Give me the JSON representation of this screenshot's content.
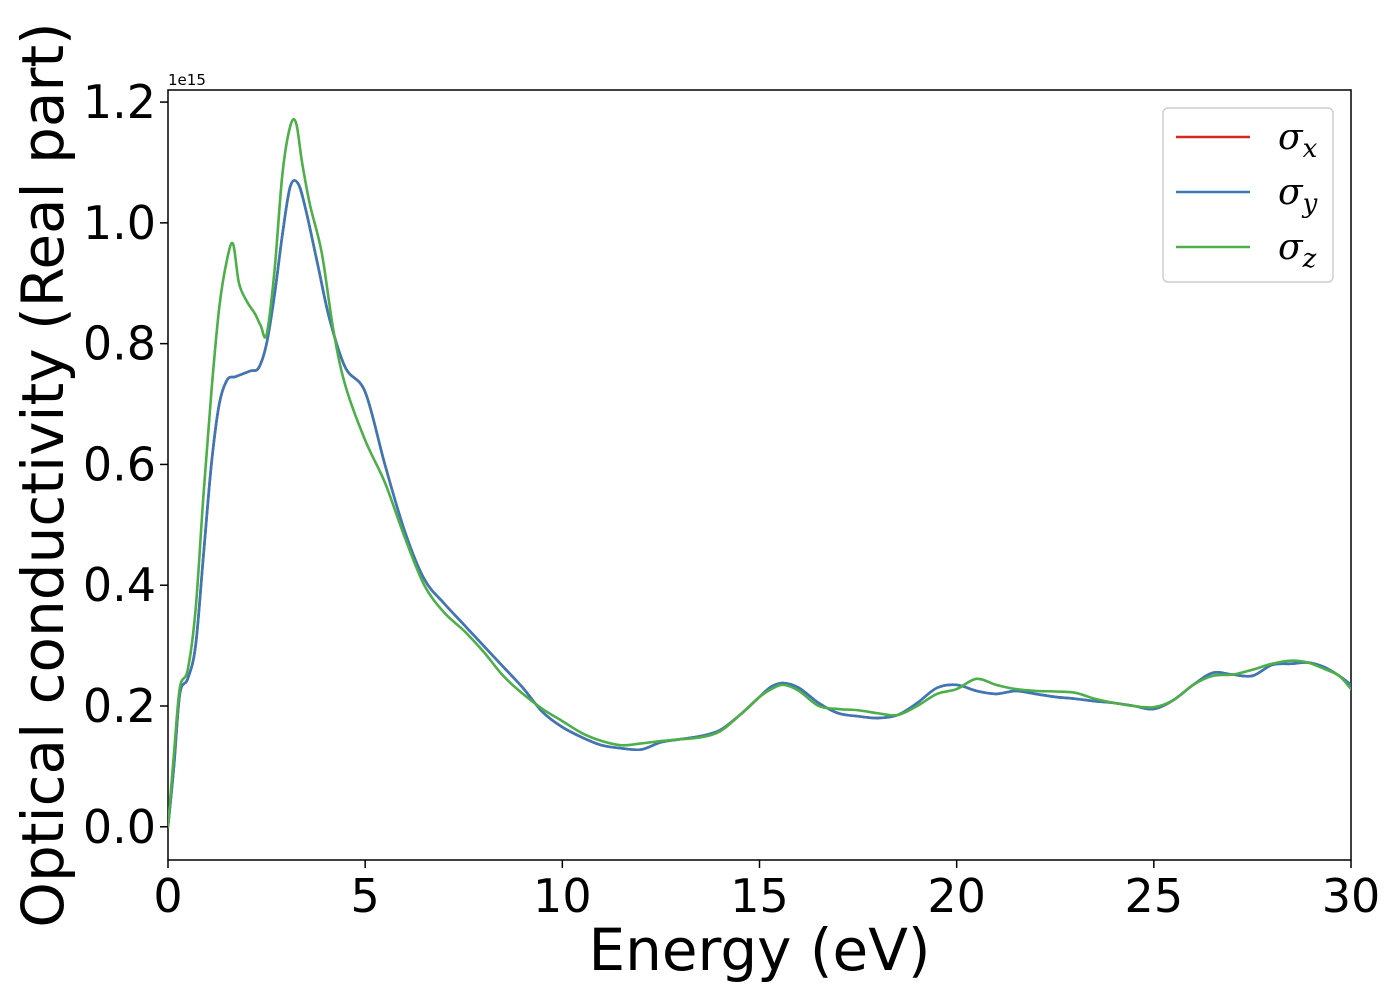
{
  "chart_data": {
    "type": "line",
    "title": "",
    "xlabel": "Energy (eV)",
    "ylabel": "Optical conductivity (Real part)",
    "y_offset_label": "1e15",
    "xlim": [
      0,
      30
    ],
    "ylim": [
      -0.055,
      1.22
    ],
    "y_scale": 1000000000000000.0,
    "xticks": [
      0,
      5,
      10,
      15,
      20,
      25,
      30
    ],
    "xtick_labels": [
      "0",
      "5",
      "10",
      "15",
      "20",
      "25",
      "30"
    ],
    "yticks": [
      0.0,
      0.2,
      0.4,
      0.6,
      0.8,
      1.0,
      1.2
    ],
    "ytick_labels": [
      "0.0",
      "0.2",
      "0.4",
      "0.6",
      "0.8",
      "1.0",
      "1.2"
    ],
    "grid": false,
    "legend_position": "top-right",
    "series": [
      {
        "name": "σx",
        "legend_base": "σ",
        "legend_sub": "x",
        "color": "#d62728",
        "x": [
          0,
          0.15,
          0.3,
          0.5,
          0.7,
          0.9,
          1.1,
          1.3,
          1.5,
          1.7,
          1.9,
          2.1,
          2.3,
          2.5,
          2.7,
          2.9,
          3.1,
          3.3,
          3.5,
          3.8,
          4.1,
          4.5,
          5.0,
          5.5,
          6.0,
          6.5,
          7.0,
          7.5,
          8.0,
          8.5,
          9.0,
          9.5,
          10.0,
          10.5,
          11.0,
          11.5,
          12.0,
          12.5,
          13.0,
          13.5,
          14.0,
          14.5,
          15.0,
          15.3,
          15.6,
          16.0,
          16.5,
          17.0,
          17.5,
          18.0,
          18.5,
          19.0,
          19.5,
          20.0,
          20.5,
          21.0,
          21.5,
          22.0,
          22.5,
          23.0,
          23.5,
          24.0,
          24.5,
          25.0,
          25.5,
          26.0,
          26.5,
          27.0,
          27.5,
          28.0,
          28.5,
          28.9,
          29.3,
          29.7,
          30.0
        ],
        "y": [
          0.0,
          0.1,
          0.22,
          0.245,
          0.3,
          0.45,
          0.6,
          0.7,
          0.74,
          0.745,
          0.75,
          0.755,
          0.76,
          0.8,
          0.88,
          0.98,
          1.06,
          1.065,
          1.02,
          0.93,
          0.84,
          0.76,
          0.72,
          0.6,
          0.49,
          0.41,
          0.37,
          0.335,
          0.3,
          0.265,
          0.23,
          0.19,
          0.165,
          0.148,
          0.135,
          0.13,
          0.128,
          0.14,
          0.145,
          0.15,
          0.16,
          0.185,
          0.215,
          0.232,
          0.238,
          0.23,
          0.205,
          0.188,
          0.183,
          0.18,
          0.185,
          0.205,
          0.23,
          0.235,
          0.225,
          0.22,
          0.225,
          0.22,
          0.215,
          0.212,
          0.208,
          0.205,
          0.2,
          0.195,
          0.21,
          0.235,
          0.255,
          0.252,
          0.25,
          0.268,
          0.27,
          0.272,
          0.265,
          0.25,
          0.235
        ]
      },
      {
        "name": "σy",
        "legend_base": "σ",
        "legend_sub": "y",
        "color": "#3b78b8",
        "x": [
          0,
          0.15,
          0.3,
          0.5,
          0.7,
          0.9,
          1.1,
          1.3,
          1.5,
          1.7,
          1.9,
          2.1,
          2.3,
          2.5,
          2.7,
          2.9,
          3.1,
          3.3,
          3.5,
          3.8,
          4.1,
          4.5,
          5.0,
          5.5,
          6.0,
          6.5,
          7.0,
          7.5,
          8.0,
          8.5,
          9.0,
          9.5,
          10.0,
          10.5,
          11.0,
          11.5,
          12.0,
          12.5,
          13.0,
          13.5,
          14.0,
          14.5,
          15.0,
          15.3,
          15.6,
          16.0,
          16.5,
          17.0,
          17.5,
          18.0,
          18.5,
          19.0,
          19.5,
          20.0,
          20.5,
          21.0,
          21.5,
          22.0,
          22.5,
          23.0,
          23.5,
          24.0,
          24.5,
          25.0,
          25.5,
          26.0,
          26.5,
          27.0,
          27.5,
          28.0,
          28.5,
          28.9,
          29.3,
          29.7,
          30.0
        ],
        "y": [
          0.0,
          0.1,
          0.22,
          0.245,
          0.3,
          0.45,
          0.6,
          0.7,
          0.74,
          0.745,
          0.75,
          0.755,
          0.76,
          0.8,
          0.88,
          0.98,
          1.06,
          1.065,
          1.02,
          0.93,
          0.84,
          0.76,
          0.72,
          0.6,
          0.49,
          0.41,
          0.37,
          0.335,
          0.3,
          0.265,
          0.23,
          0.19,
          0.165,
          0.148,
          0.135,
          0.13,
          0.128,
          0.14,
          0.145,
          0.15,
          0.16,
          0.185,
          0.215,
          0.232,
          0.238,
          0.23,
          0.205,
          0.188,
          0.183,
          0.18,
          0.185,
          0.205,
          0.23,
          0.235,
          0.225,
          0.22,
          0.225,
          0.22,
          0.215,
          0.212,
          0.208,
          0.205,
          0.2,
          0.195,
          0.21,
          0.235,
          0.255,
          0.252,
          0.25,
          0.268,
          0.27,
          0.272,
          0.265,
          0.25,
          0.235
        ]
      },
      {
        "name": "σz",
        "legend_base": "σ",
        "legend_sub": "z",
        "color": "#4daf4a",
        "x": [
          0,
          0.15,
          0.3,
          0.5,
          0.7,
          0.9,
          1.1,
          1.3,
          1.5,
          1.65,
          1.8,
          2.0,
          2.2,
          2.35,
          2.5,
          2.7,
          2.9,
          3.1,
          3.25,
          3.4,
          3.6,
          3.9,
          4.2,
          4.5,
          5.0,
          5.5,
          6.0,
          6.5,
          7.0,
          7.5,
          8.0,
          8.5,
          9.0,
          9.5,
          10.0,
          10.5,
          11.0,
          11.5,
          12.0,
          12.5,
          13.0,
          13.5,
          14.0,
          14.5,
          15.0,
          15.3,
          15.6,
          16.0,
          16.5,
          17.0,
          17.5,
          18.0,
          18.5,
          19.0,
          19.5,
          20.0,
          20.5,
          21.0,
          21.5,
          22.0,
          22.5,
          23.0,
          23.5,
          24.0,
          24.5,
          25.0,
          25.5,
          26.0,
          26.5,
          27.0,
          27.5,
          28.0,
          28.5,
          28.9,
          29.3,
          29.7,
          30.0
        ],
        "y": [
          0.0,
          0.12,
          0.23,
          0.26,
          0.36,
          0.55,
          0.72,
          0.86,
          0.94,
          0.965,
          0.9,
          0.87,
          0.85,
          0.83,
          0.815,
          0.92,
          1.08,
          1.16,
          1.165,
          1.1,
          1.03,
          0.95,
          0.82,
          0.73,
          0.64,
          0.57,
          0.48,
          0.4,
          0.355,
          0.325,
          0.29,
          0.25,
          0.22,
          0.195,
          0.175,
          0.155,
          0.142,
          0.135,
          0.138,
          0.142,
          0.145,
          0.148,
          0.158,
          0.185,
          0.215,
          0.228,
          0.235,
          0.225,
          0.2,
          0.195,
          0.193,
          0.188,
          0.185,
          0.2,
          0.22,
          0.228,
          0.245,
          0.235,
          0.228,
          0.225,
          0.224,
          0.222,
          0.212,
          0.205,
          0.2,
          0.198,
          0.21,
          0.235,
          0.25,
          0.252,
          0.26,
          0.27,
          0.275,
          0.272,
          0.262,
          0.25,
          0.228
        ]
      }
    ]
  }
}
